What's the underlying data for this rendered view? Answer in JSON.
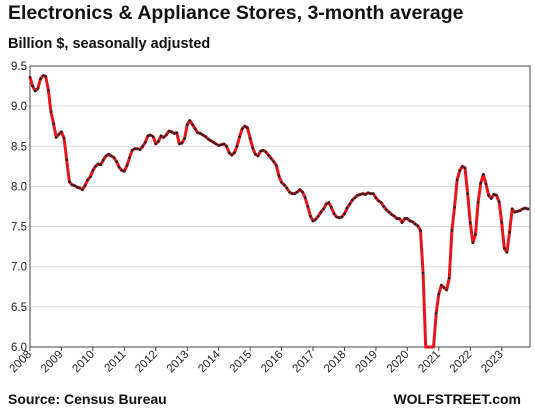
{
  "header": {
    "title": "Electronics & Appliance Stores, 3-month average",
    "subtitle": "Billion $, seasonally adjusted"
  },
  "footer": {
    "source": "Source: Census Bureau",
    "brand": "WOLFSTREET.com"
  },
  "chart_data": {
    "type": "line",
    "title": "Electronics & Appliance Stores, 3-month average",
    "subtitle": "Billion $, seasonally adjusted",
    "xlabel": "",
    "ylabel": "",
    "ylim": [
      6.0,
      9.5
    ],
    "xlim": [
      2008.0,
      2023.9
    ],
    "y_ticks": [
      6.0,
      6.5,
      7.0,
      7.5,
      8.0,
      8.5,
      9.0,
      9.5
    ],
    "y_tick_labels": [
      "6.0",
      "6.5",
      "7.0",
      "7.5",
      "8.0",
      "8.5",
      "9.0",
      "9.5"
    ],
    "x_ticks": [
      2008,
      2009,
      2010,
      2011,
      2012,
      2013,
      2014,
      2015,
      2016,
      2017,
      2018,
      2019,
      2020,
      2021,
      2022,
      2023
    ],
    "x_tick_labels": [
      "2008",
      "2009",
      "2010",
      "2011",
      "2012",
      "2013",
      "2014",
      "2015",
      "2016",
      "2017",
      "2018",
      "2019",
      "2020",
      "2021",
      "2022",
      "2023"
    ],
    "grid": "horizontal",
    "line_color": "#e8141c",
    "marker_color": "#222222",
    "series": [
      {
        "points": [
          [
            2008.0,
            9.36
          ],
          [
            2008.083,
            9.25
          ],
          [
            2008.167,
            9.19
          ],
          [
            2008.25,
            9.22
          ],
          [
            2008.333,
            9.34
          ],
          [
            2008.417,
            9.38
          ],
          [
            2008.5,
            9.37
          ],
          [
            2008.583,
            9.2
          ],
          [
            2008.667,
            8.93
          ],
          [
            2008.75,
            8.78
          ],
          [
            2008.833,
            8.61
          ],
          [
            2008.917,
            8.65
          ],
          [
            2009.0,
            8.68
          ],
          [
            2009.083,
            8.6
          ],
          [
            2009.167,
            8.33
          ],
          [
            2009.25,
            8.06
          ],
          [
            2009.333,
            8.02
          ],
          [
            2009.417,
            8.01
          ],
          [
            2009.5,
            7.99
          ],
          [
            2009.583,
            7.98
          ],
          [
            2009.667,
            7.96
          ],
          [
            2009.75,
            8.01
          ],
          [
            2009.833,
            8.08
          ],
          [
            2009.917,
            8.12
          ],
          [
            2010.0,
            8.2
          ],
          [
            2010.083,
            8.25
          ],
          [
            2010.167,
            8.28
          ],
          [
            2010.25,
            8.27
          ],
          [
            2010.333,
            8.33
          ],
          [
            2010.417,
            8.38
          ],
          [
            2010.5,
            8.4
          ],
          [
            2010.583,
            8.38
          ],
          [
            2010.667,
            8.36
          ],
          [
            2010.75,
            8.31
          ],
          [
            2010.833,
            8.24
          ],
          [
            2010.917,
            8.2
          ],
          [
            2011.0,
            8.19
          ],
          [
            2011.083,
            8.26
          ],
          [
            2011.167,
            8.36
          ],
          [
            2011.25,
            8.45
          ],
          [
            2011.333,
            8.47
          ],
          [
            2011.417,
            8.47
          ],
          [
            2011.5,
            8.46
          ],
          [
            2011.583,
            8.5
          ],
          [
            2011.667,
            8.55
          ],
          [
            2011.75,
            8.63
          ],
          [
            2011.833,
            8.64
          ],
          [
            2011.917,
            8.62
          ],
          [
            2012.0,
            8.53
          ],
          [
            2012.083,
            8.56
          ],
          [
            2012.167,
            8.63
          ],
          [
            2012.25,
            8.61
          ],
          [
            2012.333,
            8.64
          ],
          [
            2012.417,
            8.69
          ],
          [
            2012.5,
            8.68
          ],
          [
            2012.583,
            8.66
          ],
          [
            2012.667,
            8.67
          ],
          [
            2012.75,
            8.53
          ],
          [
            2012.833,
            8.54
          ],
          [
            2012.917,
            8.6
          ],
          [
            2013.0,
            8.77
          ],
          [
            2013.083,
            8.82
          ],
          [
            2013.167,
            8.77
          ],
          [
            2013.25,
            8.72
          ],
          [
            2013.333,
            8.67
          ],
          [
            2013.417,
            8.66
          ],
          [
            2013.5,
            8.64
          ],
          [
            2013.583,
            8.62
          ],
          [
            2013.667,
            8.59
          ],
          [
            2013.75,
            8.57
          ],
          [
            2013.833,
            8.55
          ],
          [
            2013.917,
            8.53
          ],
          [
            2014.0,
            8.51
          ],
          [
            2014.083,
            8.52
          ],
          [
            2014.167,
            8.53
          ],
          [
            2014.25,
            8.5
          ],
          [
            2014.333,
            8.42
          ],
          [
            2014.417,
            8.39
          ],
          [
            2014.5,
            8.42
          ],
          [
            2014.583,
            8.5
          ],
          [
            2014.667,
            8.62
          ],
          [
            2014.75,
            8.72
          ],
          [
            2014.833,
            8.75
          ],
          [
            2014.917,
            8.73
          ],
          [
            2015.0,
            8.6
          ],
          [
            2015.083,
            8.48
          ],
          [
            2015.167,
            8.4
          ],
          [
            2015.25,
            8.38
          ],
          [
            2015.333,
            8.44
          ],
          [
            2015.417,
            8.45
          ],
          [
            2015.5,
            8.43
          ],
          [
            2015.583,
            8.39
          ],
          [
            2015.667,
            8.35
          ],
          [
            2015.75,
            8.31
          ],
          [
            2015.833,
            8.26
          ],
          [
            2015.917,
            8.13
          ],
          [
            2016.0,
            8.05
          ],
          [
            2016.083,
            8.02
          ],
          [
            2016.167,
            7.98
          ],
          [
            2016.25,
            7.93
          ],
          [
            2016.333,
            7.91
          ],
          [
            2016.417,
            7.91
          ],
          [
            2016.5,
            7.93
          ],
          [
            2016.583,
            7.96
          ],
          [
            2016.667,
            7.93
          ],
          [
            2016.75,
            7.86
          ],
          [
            2016.833,
            7.75
          ],
          [
            2016.917,
            7.63
          ],
          [
            2017.0,
            7.57
          ],
          [
            2017.083,
            7.59
          ],
          [
            2017.167,
            7.63
          ],
          [
            2017.25,
            7.68
          ],
          [
            2017.333,
            7.72
          ],
          [
            2017.417,
            7.78
          ],
          [
            2017.5,
            7.8
          ],
          [
            2017.583,
            7.74
          ],
          [
            2017.667,
            7.66
          ],
          [
            2017.75,
            7.62
          ],
          [
            2017.833,
            7.61
          ],
          [
            2017.917,
            7.62
          ],
          [
            2018.0,
            7.66
          ],
          [
            2018.083,
            7.73
          ],
          [
            2018.167,
            7.78
          ],
          [
            2018.25,
            7.83
          ],
          [
            2018.333,
            7.86
          ],
          [
            2018.417,
            7.89
          ],
          [
            2018.5,
            7.9
          ],
          [
            2018.583,
            7.91
          ],
          [
            2018.667,
            7.9
          ],
          [
            2018.75,
            7.92
          ],
          [
            2018.833,
            7.91
          ],
          [
            2018.917,
            7.91
          ],
          [
            2019.0,
            7.86
          ],
          [
            2019.083,
            7.82
          ],
          [
            2019.167,
            7.8
          ],
          [
            2019.25,
            7.75
          ],
          [
            2019.333,
            7.71
          ],
          [
            2019.417,
            7.68
          ],
          [
            2019.5,
            7.65
          ],
          [
            2019.583,
            7.63
          ],
          [
            2019.667,
            7.6
          ],
          [
            2019.75,
            7.6
          ],
          [
            2019.833,
            7.55
          ],
          [
            2019.917,
            7.6
          ],
          [
            2020.0,
            7.6
          ],
          [
            2020.083,
            7.57
          ],
          [
            2020.167,
            7.56
          ],
          [
            2020.25,
            7.53
          ],
          [
            2020.333,
            7.51
          ],
          [
            2020.417,
            7.45
          ],
          [
            2020.5,
            6.92
          ],
          [
            2020.583,
            6.0
          ],
          [
            2020.833,
            6.0
          ],
          [
            2020.917,
            6.42
          ],
          [
            2021.0,
            6.66
          ],
          [
            2021.083,
            6.77
          ],
          [
            2021.167,
            6.74
          ],
          [
            2021.25,
            6.71
          ],
          [
            2021.333,
            6.86
          ],
          [
            2021.417,
            7.45
          ],
          [
            2021.5,
            7.74
          ],
          [
            2021.583,
            8.08
          ],
          [
            2021.667,
            8.2
          ],
          [
            2021.75,
            8.25
          ],
          [
            2021.833,
            8.23
          ],
          [
            2021.917,
            7.91
          ],
          [
            2022.0,
            7.55
          ],
          [
            2022.083,
            7.3
          ],
          [
            2022.167,
            7.4
          ],
          [
            2022.25,
            7.8
          ],
          [
            2022.333,
            8.04
          ],
          [
            2022.417,
            8.15
          ],
          [
            2022.5,
            8.03
          ],
          [
            2022.583,
            7.89
          ],
          [
            2022.667,
            7.85
          ],
          [
            2022.75,
            7.9
          ],
          [
            2022.833,
            7.89
          ],
          [
            2022.917,
            7.81
          ],
          [
            2023.0,
            7.55
          ],
          [
            2023.083,
            7.23
          ],
          [
            2023.167,
            7.18
          ],
          [
            2023.25,
            7.43
          ],
          [
            2023.333,
            7.72
          ],
          [
            2023.417,
            7.68
          ],
          [
            2023.5,
            7.69
          ],
          [
            2023.583,
            7.7
          ],
          [
            2023.667,
            7.72
          ],
          [
            2023.75,
            7.73
          ],
          [
            2023.833,
            7.72
          ]
        ]
      }
    ]
  }
}
